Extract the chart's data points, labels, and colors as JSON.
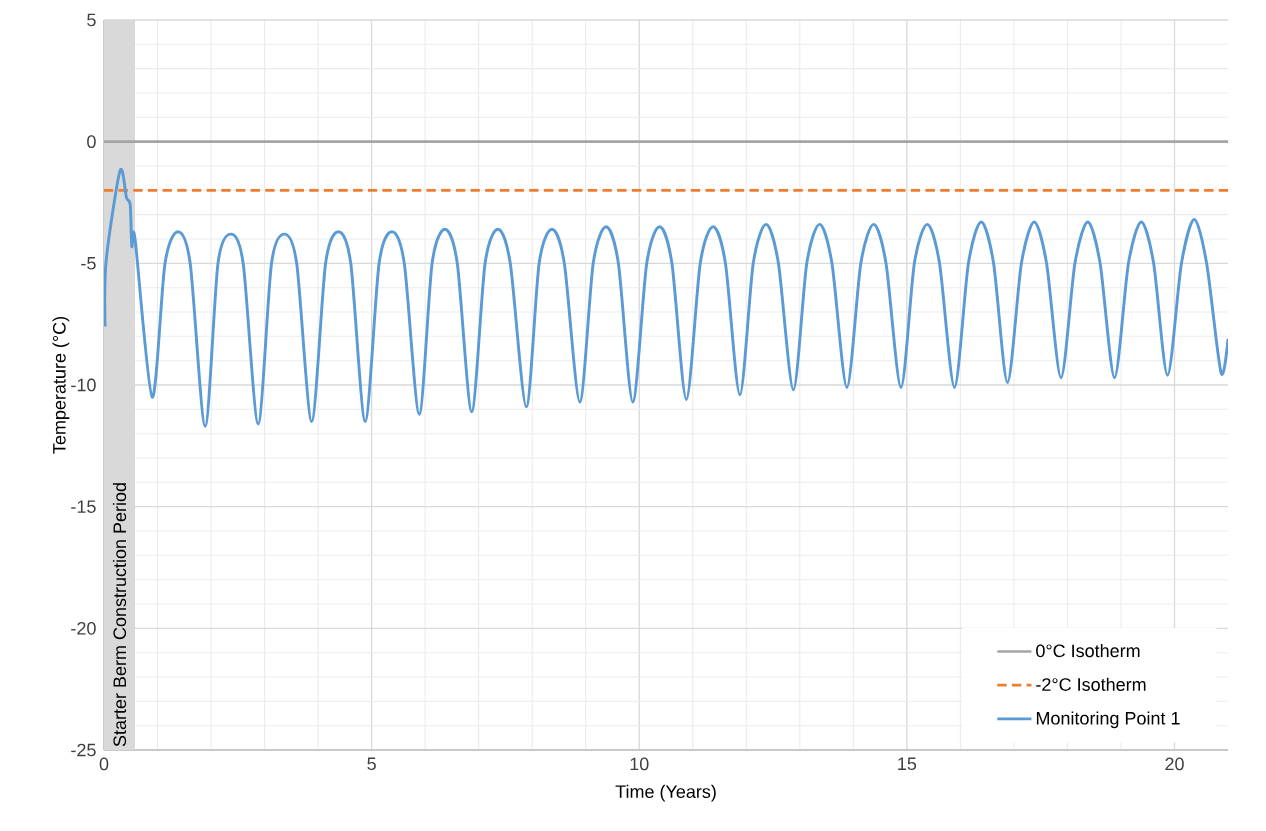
{
  "chart_data": {
    "type": "line",
    "xlabel": "Time (Years)",
    "ylabel": "Temperature (°C)",
    "xlim": [
      0,
      21
    ],
    "ylim": [
      -25,
      5
    ],
    "xticks": [
      0,
      5,
      10,
      15,
      20
    ],
    "yticks": [
      -25,
      -20,
      -15,
      -10,
      -5,
      0,
      5
    ],
    "grid": true,
    "legend": "bottom right",
    "marker": "none",
    "bands": [
      {
        "axis": "x",
        "from": 0,
        "to": 0.58,
        "label": "Starter Berm Construction Period",
        "color": "#d9d9d9"
      }
    ],
    "series": [
      {
        "name": "0°C Isotherm",
        "color": "#a5a5a5",
        "line_style": "solid",
        "x": [
          0,
          21
        ],
        "values": [
          0,
          0
        ]
      },
      {
        "name": "-2°C Isotherm",
        "color": "#ed7d31",
        "line_style": "dashed",
        "x": [
          0,
          21
        ],
        "values": [
          -2,
          -2
        ]
      },
      {
        "name": "Monitoring Point 1",
        "color": "#5b9bd5",
        "line_style": "solid",
        "x": [
          0.02,
          0.04,
          0.3,
          0.42,
          0.49,
          0.52,
          0.58,
          0.9,
          1.14,
          1.38,
          1.61,
          1.89,
          2.13,
          2.37,
          2.6,
          2.88,
          3.13,
          3.37,
          3.6,
          3.88,
          4.14,
          4.38,
          4.61,
          4.88,
          5.14,
          5.38,
          5.61,
          5.89,
          6.13,
          6.37,
          6.6,
          6.87,
          7.12,
          7.36,
          7.59,
          7.89,
          8.13,
          8.37,
          8.6,
          8.89,
          9.14,
          9.38,
          9.61,
          9.88,
          10.14,
          10.38,
          10.61,
          10.88,
          11.14,
          11.38,
          11.61,
          11.88,
          12.13,
          12.37,
          12.6,
          12.88,
          13.13,
          13.37,
          13.6,
          13.88,
          14.14,
          14.38,
          14.61,
          14.89,
          15.14,
          15.38,
          15.61,
          15.89,
          16.15,
          16.39,
          16.62,
          16.88,
          17.14,
          17.38,
          17.61,
          17.88,
          18.14,
          18.38,
          18.61,
          18.88,
          19.14,
          19.38,
          19.61,
          19.87,
          20.13,
          20.37,
          20.6,
          20.87,
          21.0
        ],
        "values": [
          -7.6,
          -4.9,
          -1.2,
          -2.3,
          -2.6,
          -4.3,
          -4.0,
          -10.5,
          -5,
          -3.7,
          -5,
          -11.7,
          -5,
          -3.8,
          -5,
          -11.6,
          -5,
          -3.8,
          -5,
          -11.5,
          -5,
          -3.7,
          -5,
          -11.5,
          -5,
          -3.7,
          -5,
          -11.2,
          -5,
          -3.6,
          -5,
          -11.1,
          -5,
          -3.6,
          -5,
          -10.9,
          -5,
          -3.6,
          -5,
          -10.7,
          -5,
          -3.5,
          -5,
          -10.7,
          -5,
          -3.5,
          -5,
          -10.6,
          -5,
          -3.5,
          -5,
          -10.4,
          -5,
          -3.4,
          -5,
          -10.2,
          -5,
          -3.4,
          -5,
          -10.1,
          -5,
          -3.4,
          -5,
          -10.1,
          -5,
          -3.4,
          -5,
          -10.1,
          -5,
          -3.3,
          -5,
          -9.9,
          -5,
          -3.3,
          -5,
          -9.7,
          -5,
          -3.3,
          -5,
          -9.7,
          -5,
          -3.3,
          -5,
          -9.6,
          -5,
          -3.2,
          -5,
          -9.5,
          -8.1
        ]
      }
    ]
  }
}
